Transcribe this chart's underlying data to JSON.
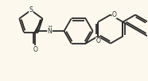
{
  "background_color": "#fcf8ee",
  "line_color": "#2a2a2a",
  "lw": 1.3,
  "figsize": [
    1.86,
    1.02
  ],
  "dpi": 100,
  "xlim": [
    -0.5,
    4.8
  ],
  "ylim": [
    -0.3,
    2.6
  ]
}
